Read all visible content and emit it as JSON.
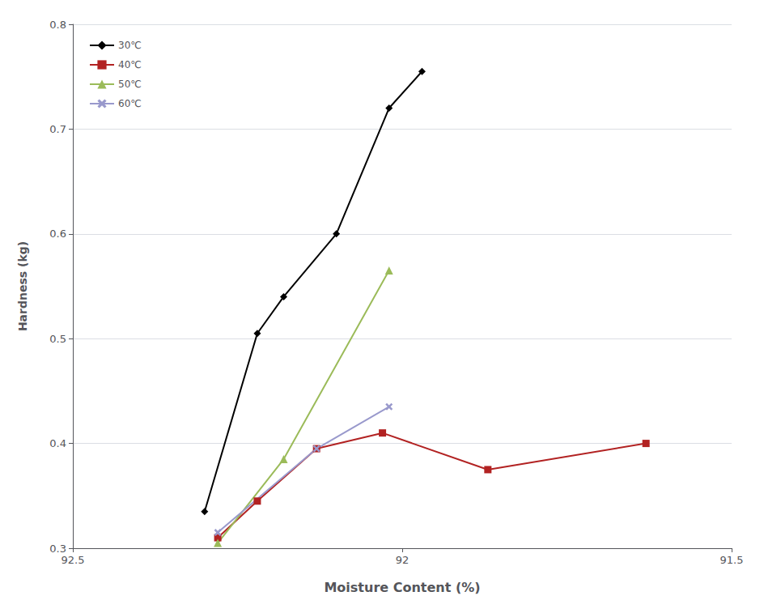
{
  "chart_data": {
    "type": "line",
    "xlabel": "Moisture Content (%)",
    "ylabel": "Hardness (kg)",
    "xlim": [
      92.5,
      91.5
    ],
    "ylim": [
      0.3,
      0.8
    ],
    "xticks": [
      92.5,
      92,
      91.5
    ],
    "yticks": [
      0.3,
      0.4,
      0.5,
      0.6,
      0.7,
      0.8
    ],
    "grid": "y",
    "legend": "upper left",
    "series": [
      {
        "name": "30℃",
        "color": "#000000",
        "marker": "diamond",
        "x": [
          92.3,
          92.22,
          92.18,
          92.1,
          92.02,
          91.97
        ],
        "values": [
          0.335,
          0.505,
          0.54,
          0.6,
          0.72,
          0.755
        ]
      },
      {
        "name": "40℃",
        "color": "#B22222",
        "marker": "square",
        "x": [
          92.28,
          92.22,
          92.13,
          92.03,
          91.87,
          91.63
        ],
        "values": [
          0.31,
          0.345,
          0.395,
          0.41,
          0.375,
          0.4
        ]
      },
      {
        "name": "50℃",
        "color": "#9BBB59",
        "marker": "triangle",
        "x": [
          92.28,
          92.18,
          92.02
        ],
        "values": [
          0.305,
          0.385,
          0.565
        ]
      },
      {
        "name": "60℃",
        "color": "#9999CC",
        "marker": "x",
        "x": [
          92.28,
          92.13,
          92.02
        ],
        "values": [
          0.315,
          0.395,
          0.435
        ]
      }
    ]
  }
}
